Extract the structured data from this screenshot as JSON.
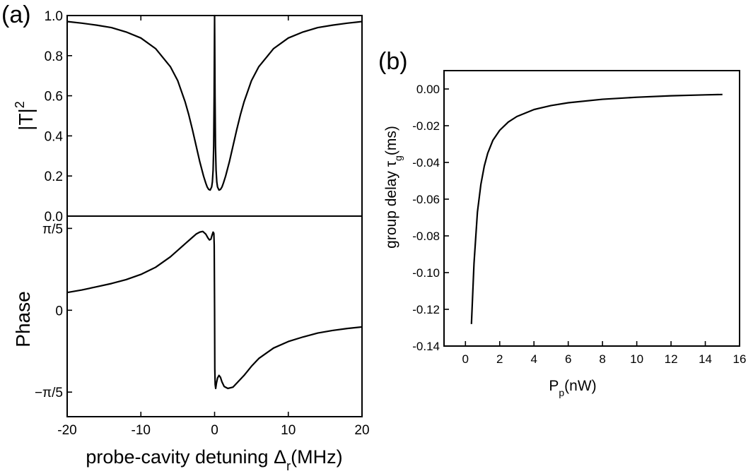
{
  "chart_data": [
    {
      "panel_label": "(a)",
      "type": "line",
      "subplots": [
        {
          "ylabel": "|T|",
          "ylabel_superscript": "2",
          "ylim": [
            0.0,
            1.0
          ],
          "yticks": [
            {
              "value": 0.0,
              "label": "0.0"
            },
            {
              "value": 0.2,
              "label": "0.2"
            },
            {
              "value": 0.4,
              "label": "0.4"
            },
            {
              "value": 0.6,
              "label": "0.6"
            },
            {
              "value": 0.8,
              "label": "0.8"
            },
            {
              "value": 1.0,
              "label": "1.0"
            }
          ],
          "series": [
            {
              "x": [
                -20,
                -18,
                -16,
                -14,
                -12,
                -10,
                -8,
                -6,
                -5,
                -4,
                -3.5,
                -3,
                -2.5,
                -2,
                -1.5,
                -1.2,
                -1,
                -0.8,
                -0.6,
                -0.4,
                -0.3,
                -0.2,
                -0.12,
                -0.06,
                0,
                0.06,
                0.12,
                0.2,
                0.3,
                0.4,
                0.6,
                0.8,
                1,
                1.2,
                1.5,
                2,
                2.5,
                3,
                3.5,
                4,
                5,
                6,
                8,
                10,
                12,
                14,
                16,
                18,
                20
              ],
              "y": [
                0.97,
                0.962,
                0.952,
                0.94,
                0.918,
                0.888,
                0.835,
                0.745,
                0.675,
                0.57,
                0.505,
                0.43,
                0.35,
                0.27,
                0.2,
                0.165,
                0.145,
                0.133,
                0.13,
                0.145,
                0.17,
                0.23,
                0.35,
                0.6,
                1.0,
                0.6,
                0.35,
                0.23,
                0.17,
                0.145,
                0.13,
                0.133,
                0.145,
                0.165,
                0.2,
                0.27,
                0.35,
                0.43,
                0.505,
                0.57,
                0.675,
                0.745,
                0.835,
                0.888,
                0.918,
                0.94,
                0.952,
                0.962,
                0.97
              ]
            }
          ]
        },
        {
          "ylabel": "Phase",
          "ylim": [
            -0.8168,
            0.7226
          ],
          "yticks": [
            {
              "value": 0.6283,
              "label": "π/5"
            },
            {
              "value": 0,
              "label": "0"
            },
            {
              "value": -0.6283,
              "label": "−π/5"
            }
          ],
          "series": [
            {
              "x": [
                -20,
                -18,
                -16,
                -14,
                -12,
                -10,
                -8,
                -6,
                -5,
                -4,
                -3,
                -2.5,
                -2,
                -1.6,
                -1.2,
                -0.9,
                -0.7,
                -0.5,
                -0.35,
                -0.2,
                -0.1,
                -0.05,
                0,
                0.03,
                0.08,
                0.15,
                0.25,
                0.4,
                0.6,
                0.8,
                1,
                1.3,
                1.8,
                2.5,
                3,
                4,
                5,
                6,
                8,
                10,
                12,
                14,
                16,
                18,
                20
              ],
              "y": [
                0.136,
                0.156,
                0.18,
                0.205,
                0.235,
                0.275,
                0.33,
                0.41,
                0.46,
                0.51,
                0.56,
                0.585,
                0.6,
                0.605,
                0.585,
                0.555,
                0.54,
                0.545,
                0.575,
                0.6,
                0.59,
                0.5,
                0.0,
                -0.45,
                -0.57,
                -0.6,
                -0.56,
                -0.52,
                -0.5,
                -0.515,
                -0.55,
                -0.585,
                -0.6,
                -0.59,
                -0.56,
                -0.5,
                -0.43,
                -0.37,
                -0.29,
                -0.24,
                -0.205,
                -0.175,
                -0.155,
                -0.14,
                -0.128
              ]
            }
          ]
        }
      ],
      "xlabel": "probe-cavity detuning Δ",
      "xlabel_subscript": "r",
      "xlabel_suffix": "(MHz)",
      "xlim": [
        -20,
        20
      ],
      "xticks": [
        {
          "value": -20,
          "label": "-20"
        },
        {
          "value": -10,
          "label": "-10"
        },
        {
          "value": 0,
          "label": "0"
        },
        {
          "value": 10,
          "label": "10"
        },
        {
          "value": 20,
          "label": "20"
        }
      ]
    },
    {
      "panel_label": "(b)",
      "type": "line",
      "xlabel": "P",
      "xlabel_subscript": "p",
      "xlabel_suffix": "(nW)",
      "ylabel": "group delay τ",
      "ylabel_subscript": "g",
      "ylabel_suffix": "(ms)",
      "xlim": [
        -1.25,
        16
      ],
      "ylim": [
        -0.14,
        0.01
      ],
      "xticks": [
        {
          "value": 0,
          "label": "0"
        },
        {
          "value": 2,
          "label": "2"
        },
        {
          "value": 4,
          "label": "4"
        },
        {
          "value": 6,
          "label": "6"
        },
        {
          "value": 8,
          "label": "8"
        },
        {
          "value": 10,
          "label": "10"
        },
        {
          "value": 12,
          "label": "12"
        },
        {
          "value": 14,
          "label": "14"
        },
        {
          "value": 16,
          "label": "16"
        }
      ],
      "yticks": [
        {
          "value": 0.0,
          "label": "0.00"
        },
        {
          "value": -0.02,
          "label": "-0.02"
        },
        {
          "value": -0.04,
          "label": "-0.04"
        },
        {
          "value": -0.06,
          "label": "-0.06"
        },
        {
          "value": -0.08,
          "label": "-0.08"
        },
        {
          "value": -0.1,
          "label": "-0.10"
        },
        {
          "value": -0.12,
          "label": "-0.12"
        },
        {
          "value": -0.14,
          "label": "-0.14"
        }
      ],
      "series": [
        {
          "x": [
            0.35,
            0.5,
            0.7,
            0.9,
            1.1,
            1.3,
            1.6,
            2.0,
            2.5,
            3.0,
            4.0,
            5.0,
            6.0,
            8.0,
            10.0,
            12.0,
            14.0,
            15.0
          ],
          "y": [
            -0.128,
            -0.095,
            -0.067,
            -0.052,
            -0.042,
            -0.035,
            -0.028,
            -0.0225,
            -0.018,
            -0.015,
            -0.0112,
            -0.009,
            -0.0075,
            -0.0056,
            -0.0045,
            -0.0037,
            -0.0032,
            -0.003
          ]
        }
      ]
    }
  ]
}
